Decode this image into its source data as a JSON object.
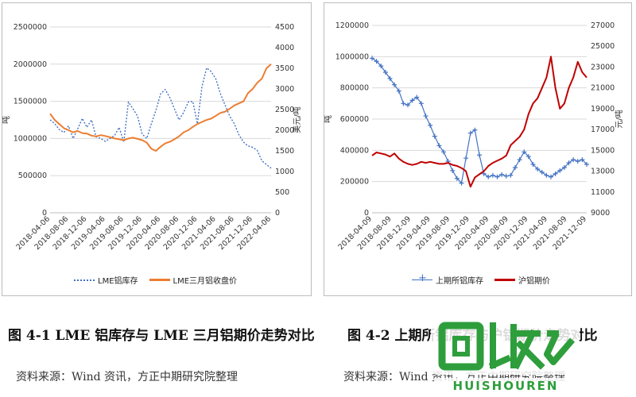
{
  "figures": [
    {
      "caption": "图 4-1 LME 铝库存与 LME 三月铝期价走势对比",
      "source": "资料来源：Wind 资讯，方正中期研究院整理"
    },
    {
      "caption": "图 4-2 上期所铝库存与沪铝期价走势对比",
      "source": "资料来源：Wind 资讯，方正中期研究院整理"
    }
  ],
  "watermark": {
    "text": "回收",
    "subtext": "HUISHOUREN",
    "color": "#2e9e3c"
  },
  "chart_data": [
    {
      "type": "line",
      "left_axis": {
        "label": "吨",
        "ticks": [
          "0",
          "500000",
          "1000000",
          "1500000",
          "2000000",
          "2500000"
        ],
        "ylim": [
          0,
          2500000
        ]
      },
      "right_axis": {
        "label": "美元/吨",
        "ticks": [
          "0",
          "500",
          "1000",
          "1500",
          "2000",
          "2500",
          "3000",
          "3500",
          "4000",
          "4500"
        ],
        "ylim": [
          0,
          4500
        ]
      },
      "x_ticks": [
        "2018-04-06",
        "2018-08-06",
        "2018-12-06",
        "2019-04-06",
        "2019-08-06",
        "2019-12-06",
        "2020-04-06",
        "2020-08-06",
        "2020-12-06",
        "2021-04-06",
        "2021-08-06",
        "2021-12-06",
        "2022-04-06"
      ],
      "xlim": [
        0,
        48
      ],
      "grid": true,
      "legend_position": "bottom",
      "series": [
        {
          "name": "LME铝库存",
          "axis": "left",
          "color": "#4472c4",
          "style": "dotted",
          "x": [
            0,
            1,
            2,
            3,
            4,
            5,
            6,
            7,
            8,
            9,
            10,
            11,
            12,
            13,
            14,
            15,
            16,
            17,
            18,
            19,
            20,
            21,
            22,
            23,
            24,
            25,
            26,
            27,
            28,
            29,
            30,
            31,
            32,
            33,
            34,
            35,
            36,
            37,
            38,
            39,
            40,
            41,
            42,
            43,
            44,
            45,
            46,
            47,
            48
          ],
          "y": [
            1250000,
            1200000,
            1120000,
            1080000,
            1170000,
            1000000,
            1130000,
            1270000,
            1150000,
            1250000,
            1020000,
            1000000,
            960000,
            1000000,
            1040000,
            1150000,
            950000,
            1490000,
            1400000,
            1300000,
            1060000,
            1000000,
            1200000,
            1380000,
            1600000,
            1660000,
            1550000,
            1400000,
            1250000,
            1350000,
            1490000,
            1500000,
            1200000,
            1700000,
            1950000,
            1900000,
            1800000,
            1600000,
            1450000,
            1300000,
            1200000,
            1050000,
            950000,
            900000,
            880000,
            840000,
            700000,
            650000,
            600000
          ]
        },
        {
          "name": "LME三月铝收盘价",
          "axis": "right",
          "color": "#ed7d31",
          "style": "solid",
          "x": [
            0,
            1,
            2,
            3,
            4,
            5,
            6,
            7,
            8,
            9,
            10,
            11,
            12,
            13,
            14,
            15,
            16,
            17,
            18,
            19,
            20,
            21,
            22,
            23,
            24,
            25,
            26,
            27,
            28,
            29,
            30,
            31,
            32,
            33,
            34,
            35,
            36,
            37,
            38,
            39,
            40,
            41,
            42,
            43,
            44,
            45,
            46,
            47,
            48
          ],
          "y": [
            2400,
            2250,
            2150,
            2050,
            2000,
            1950,
            1980,
            1930,
            1920,
            1870,
            1850,
            1880,
            1860,
            1830,
            1800,
            1780,
            1760,
            1800,
            1820,
            1790,
            1760,
            1700,
            1550,
            1500,
            1600,
            1680,
            1720,
            1780,
            1850,
            1950,
            2000,
            2080,
            2150,
            2200,
            2250,
            2280,
            2350,
            2420,
            2450,
            2520,
            2600,
            2650,
            2700,
            2900,
            3000,
            3150,
            3250,
            3500,
            3600
          ]
        }
      ]
    },
    {
      "type": "line",
      "left_axis": {
        "label": "吨",
        "ticks": [
          "0",
          "200000",
          "400000",
          "600000",
          "800000",
          "1000000",
          "1200000"
        ],
        "ylim": [
          0,
          1200000
        ]
      },
      "right_axis": {
        "label": "元/吨",
        "ticks": [
          "9000",
          "11000",
          "13000",
          "15000",
          "17000",
          "19000",
          "21000",
          "23000",
          "25000",
          "27000"
        ],
        "ylim": [
          9000,
          27000
        ]
      },
      "x_ticks": [
        "2018-04-09",
        "2018-08-09",
        "2018-12-09",
        "2019-04-09",
        "2019-08-09",
        "2019-12-09",
        "2020-04-09",
        "2020-08-09",
        "2020-12-09",
        "2021-04-09",
        "2021-08-09",
        "2021-12-09"
      ],
      "xlim": [
        0,
        48
      ],
      "grid": true,
      "legend_position": "bottom",
      "series": [
        {
          "name": "上期所铝库存",
          "axis": "left",
          "color": "#4472c4",
          "style": "plus-markers",
          "x": [
            0,
            1,
            2,
            3,
            4,
            5,
            6,
            7,
            8,
            9,
            10,
            11,
            12,
            13,
            14,
            15,
            16,
            17,
            18,
            19,
            20,
            21,
            22,
            23,
            24,
            25,
            26,
            27,
            28,
            29,
            30,
            31,
            32,
            33,
            34,
            35,
            36,
            37,
            38,
            39,
            40,
            41,
            42,
            43,
            44,
            45,
            46,
            47,
            48
          ],
          "y": [
            990000,
            970000,
            940000,
            900000,
            860000,
            820000,
            780000,
            700000,
            690000,
            720000,
            740000,
            700000,
            620000,
            560000,
            490000,
            430000,
            390000,
            330000,
            270000,
            220000,
            190000,
            350000,
            510000,
            530000,
            370000,
            250000,
            230000,
            240000,
            230000,
            245000,
            235000,
            240000,
            290000,
            340000,
            390000,
            360000,
            310000,
            280000,
            260000,
            240000,
            230000,
            250000,
            270000,
            290000,
            320000,
            340000,
            330000,
            340000,
            310000
          ]
        },
        {
          "name": "沪铝期价",
          "axis": "right",
          "color": "#c00000",
          "style": "solid",
          "x": [
            0,
            1,
            2,
            3,
            4,
            5,
            6,
            7,
            8,
            9,
            10,
            11,
            12,
            13,
            14,
            15,
            16,
            17,
            18,
            19,
            20,
            21,
            22,
            23,
            24,
            25,
            26,
            27,
            28,
            29,
            30,
            31,
            32,
            33,
            34,
            35,
            36,
            37,
            38,
            39,
            40,
            41,
            42,
            43,
            44,
            45,
            46,
            47,
            48
          ],
          "y": [
            14500,
            14800,
            14700,
            14600,
            14400,
            14700,
            14200,
            13900,
            13700,
            13600,
            13700,
            13900,
            13800,
            13900,
            13800,
            13700,
            13700,
            13800,
            13600,
            13500,
            13300,
            13000,
            11500,
            12400,
            12700,
            13000,
            13500,
            13800,
            14000,
            14200,
            14500,
            15500,
            15900,
            16300,
            17000,
            18500,
            19500,
            20000,
            21000,
            22000,
            24000,
            21000,
            19000,
            19500,
            21000,
            22000,
            23500,
            22500,
            22000
          ]
        }
      ]
    }
  ]
}
